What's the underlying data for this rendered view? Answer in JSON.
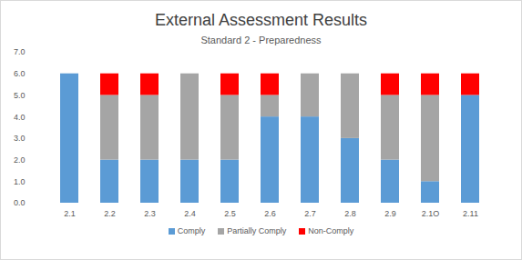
{
  "chart_data": {
    "type": "bar",
    "stacked": true,
    "title": "External Assessment Results",
    "subtitle": "Standard 2 - Preparedness",
    "categories": [
      "2.1",
      "2.2",
      "2.3",
      "2.4",
      "2.5",
      "2.6",
      "2.7",
      "2.8",
      "2.9",
      "2.1O",
      "2.11"
    ],
    "series": [
      {
        "name": "Comply",
        "color": "#5b9bd5",
        "values": [
          6,
          2,
          2,
          2,
          2,
          4,
          4,
          3,
          2,
          1,
          5
        ]
      },
      {
        "name": "Partially Comply",
        "color": "#a5a5a5",
        "values": [
          0,
          3,
          3,
          4,
          3,
          1,
          2,
          3,
          3,
          4,
          0
        ]
      },
      {
        "name": "Non-Comply",
        "color": "#ff0000",
        "values": [
          0,
          1,
          1,
          0,
          1,
          1,
          0,
          0,
          1,
          1,
          1
        ]
      }
    ],
    "ylim": [
      0,
      7
    ],
    "yticks": [
      0,
      1,
      2,
      3,
      4,
      5,
      6,
      7
    ],
    "grid": false,
    "legend": "bottom"
  }
}
